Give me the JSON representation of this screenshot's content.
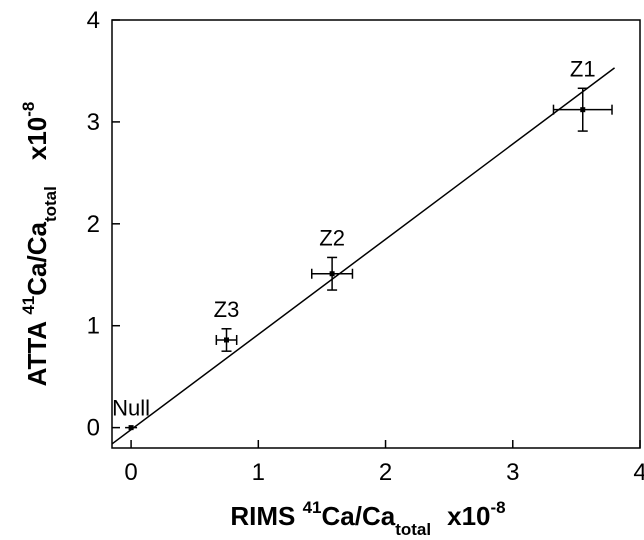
{
  "chart_data": {
    "type": "scatter",
    "xlabel": {
      "prefix": "RIMS ",
      "sup_iso": "41",
      "main": "Ca/Ca",
      "sub": "total",
      "scale": "x10",
      "scale_exp": "-8"
    },
    "ylabel": {
      "prefix": "ATTA ",
      "sup_iso": "41",
      "main": "Ca/Ca",
      "sub": "total",
      "scale": "x10",
      "scale_exp": "-8"
    },
    "xlim": [
      -0.15,
      4.0
    ],
    "ylim": [
      -0.2,
      4.0
    ],
    "xticks": [
      0,
      1,
      2,
      3,
      4
    ],
    "yticks": [
      0,
      1,
      2,
      3,
      4
    ],
    "xtick_labels": [
      "0",
      "1",
      "2",
      "3",
      "4"
    ],
    "ytick_labels": [
      "0",
      "1",
      "2",
      "3",
      "4"
    ],
    "grid": false,
    "points": [
      {
        "label": "Null",
        "x": 0.0,
        "y": 0.0,
        "xerr": 0.0,
        "yerr": 0.0
      },
      {
        "label": "Z3",
        "x": 0.75,
        "y": 0.86,
        "xerr": 0.08,
        "yerr": 0.11
      },
      {
        "label": "Z2",
        "x": 1.58,
        "y": 1.51,
        "xerr": 0.16,
        "yerr": 0.16
      },
      {
        "label": "Z1",
        "x": 3.55,
        "y": 3.12,
        "xerr": 0.23,
        "yerr": 0.21
      }
    ],
    "fit_line": {
      "x": [
        -0.15,
        3.8
      ],
      "y": [
        -0.16,
        3.53
      ]
    }
  }
}
